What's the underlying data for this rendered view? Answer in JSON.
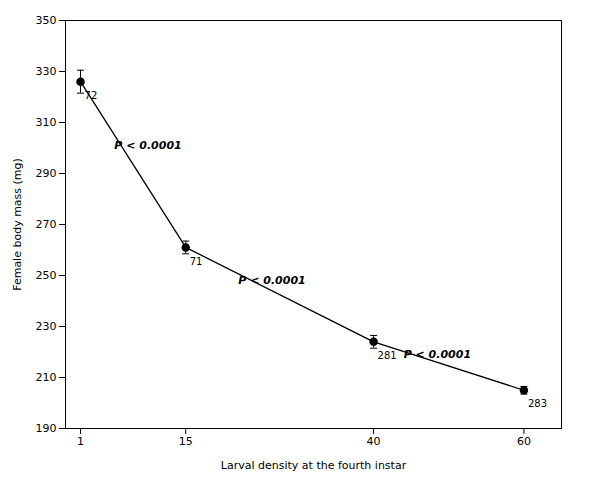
{
  "chart_data": {
    "type": "line",
    "x": [
      1,
      15,
      40,
      60
    ],
    "values": [
      326.0,
      261.0,
      224.0,
      205.0
    ],
    "yerr": [
      4.5,
      2.5,
      2.5,
      1.5
    ],
    "n_labels": [
      "72",
      "71",
      "281",
      "283"
    ],
    "annotations": [
      {
        "text": "P < 0.0001",
        "x": 5.5,
        "y": 301
      },
      {
        "text": "P < 0.0001",
        "x": 22,
        "y": 248
      },
      {
        "text": "P < 0.0001",
        "x": 44,
        "y": 219
      }
    ],
    "xlabel": "Larval density at the fourth instar",
    "ylabel": "Female body mass (mg)",
    "xlim": [
      -1,
      65
    ],
    "xticks": [
      1,
      15,
      40,
      60
    ],
    "ylim": [
      190,
      350
    ],
    "yticks": [
      190,
      210,
      230,
      250,
      270,
      290,
      310,
      330,
      350
    ],
    "color": "#000000",
    "marker": "o",
    "line_style": "solid",
    "grid": false
  }
}
